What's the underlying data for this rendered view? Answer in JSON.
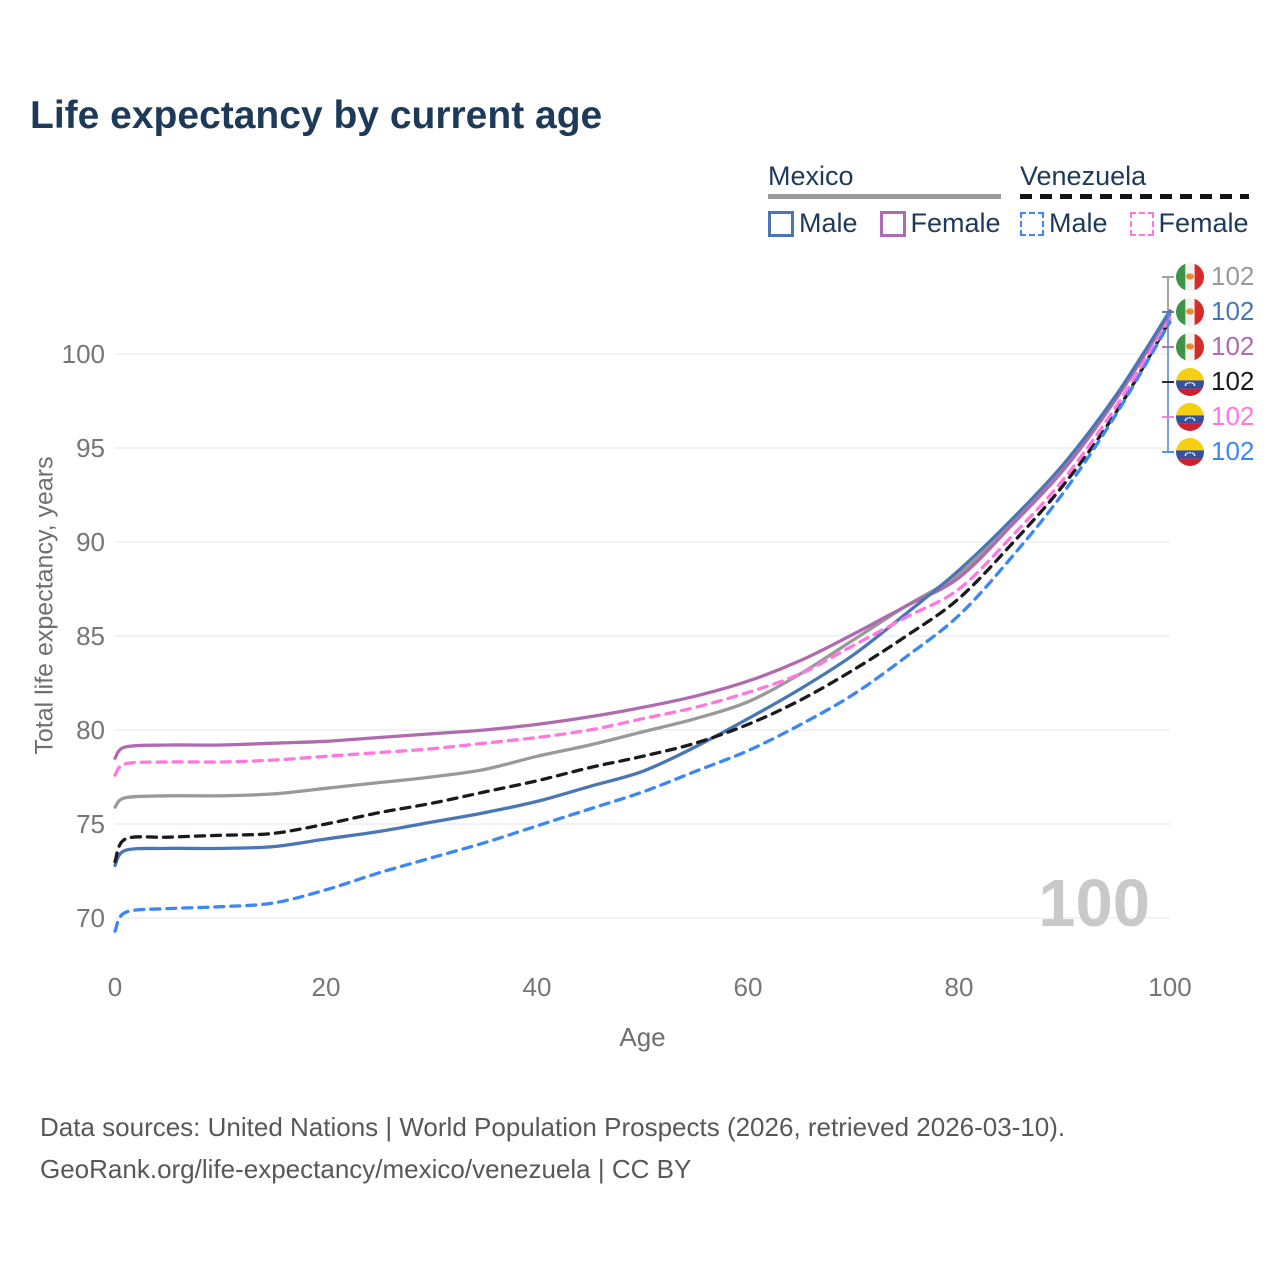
{
  "title": "Life expectancy by current age",
  "legend": {
    "groups": [
      {
        "name": "Mexico",
        "line_style": "solid",
        "underline_color": "#9b9b9b",
        "items": [
          {
            "label": "Male",
            "color": "#4a77b4",
            "dashed": false
          },
          {
            "label": "Female",
            "color": "#b06ab0",
            "dashed": false
          }
        ]
      },
      {
        "name": "Venezuela",
        "line_style": "dashed",
        "underline_color": "#141414",
        "items": [
          {
            "label": "Male",
            "color": "#3d87f5",
            "dashed": true
          },
          {
            "label": "Female",
            "color": "#ff77df",
            "dashed": true
          }
        ]
      }
    ]
  },
  "chart_data": {
    "type": "line",
    "title": "Life expectancy by current age",
    "xlabel": "Age",
    "ylabel": "Total life expectancy, years",
    "x_ticks": [
      0,
      20,
      40,
      60,
      80,
      100
    ],
    "y_ticks": [
      70,
      75,
      80,
      85,
      90,
      95,
      100
    ],
    "xlim": [
      0,
      100
    ],
    "ylim": [
      68.5,
      102.5
    ],
    "grid": "horizontal",
    "legend_position": "top-right",
    "x": [
      0,
      1,
      5,
      10,
      15,
      20,
      25,
      30,
      35,
      40,
      45,
      50,
      55,
      60,
      65,
      70,
      75,
      80,
      85,
      90,
      95,
      100
    ],
    "series": [
      {
        "name": "Mexico",
        "group": "total",
        "color": "#999999",
        "dashed": false,
        "values": [
          75.9,
          76.4,
          76.5,
          76.5,
          76.6,
          76.9,
          77.2,
          77.5,
          77.9,
          78.6,
          79.2,
          79.9,
          80.6,
          81.5,
          83.0,
          84.8,
          86.6,
          88.3,
          91.0,
          94.0,
          97.8,
          102.2
        ]
      },
      {
        "name": "Mexico Female",
        "group": "female",
        "color": "#b06ab0",
        "dashed": false,
        "values": [
          78.5,
          79.1,
          79.2,
          79.2,
          79.3,
          79.4,
          79.6,
          79.8,
          80.0,
          80.3,
          80.7,
          81.2,
          81.8,
          82.6,
          83.7,
          85.1,
          86.6,
          88.1,
          90.9,
          93.9,
          97.7,
          102.1
        ]
      },
      {
        "name": "Mexico Male",
        "group": "male",
        "color": "#4a77b4",
        "dashed": false,
        "values": [
          72.8,
          73.6,
          73.7,
          73.7,
          73.8,
          74.2,
          74.6,
          75.1,
          75.6,
          76.2,
          77.0,
          77.8,
          79.1,
          80.6,
          82.2,
          84.0,
          86.2,
          88.5,
          91.2,
          94.2,
          97.9,
          102.3
        ]
      },
      {
        "name": "Venezuela",
        "group": "total",
        "color": "#1a1a1a",
        "dashed": true,
        "values": [
          73.0,
          74.2,
          74.3,
          74.4,
          74.5,
          75.0,
          75.6,
          76.1,
          76.7,
          77.3,
          78.0,
          78.6,
          79.3,
          80.3,
          81.6,
          83.2,
          85.0,
          87.0,
          89.9,
          93.1,
          97.0,
          101.8
        ]
      },
      {
        "name": "Venezuela Female",
        "group": "female",
        "color": "#ff77df",
        "dashed": true,
        "values": [
          77.6,
          78.2,
          78.3,
          78.3,
          78.4,
          78.6,
          78.8,
          79.0,
          79.3,
          79.6,
          80.0,
          80.6,
          81.2,
          82.0,
          83.0,
          84.5,
          86.0,
          87.5,
          90.3,
          93.4,
          97.3,
          101.9
        ]
      },
      {
        "name": "Venezuela Male",
        "group": "male",
        "color": "#3d87f5",
        "dashed": true,
        "values": [
          69.3,
          70.3,
          70.5,
          70.6,
          70.8,
          71.5,
          72.4,
          73.2,
          74.0,
          74.9,
          75.8,
          76.7,
          77.8,
          78.9,
          80.3,
          81.9,
          83.9,
          86.1,
          89.2,
          92.7,
          96.9,
          101.7
        ]
      }
    ]
  },
  "right_labels": [
    {
      "country": "mexico",
      "flag": "mexico-flag",
      "value": "102",
      "color": "#999999"
    },
    {
      "country": "mexico",
      "flag": "mexico-flag",
      "value": "102",
      "color": "#4a77b4"
    },
    {
      "country": "mexico",
      "flag": "mexico-flag",
      "value": "102",
      "color": "#b06ab0"
    },
    {
      "country": "venezuela",
      "flag": "venezuela-flag",
      "value": "102",
      "color": "#1a1a1a"
    },
    {
      "country": "venezuela",
      "flag": "venezuela-flag",
      "value": "102",
      "color": "#ff77df"
    },
    {
      "country": "venezuela",
      "flag": "venezuela-flag",
      "value": "102",
      "color": "#3d87f5"
    }
  ],
  "watermark": "100",
  "footer": {
    "line1": "Data sources: United Nations | World Population Prospects (2026, retrieved 2026-03-10).",
    "line2": "GeoRank.org/life-expectancy/mexico/venezuela | CC BY"
  }
}
